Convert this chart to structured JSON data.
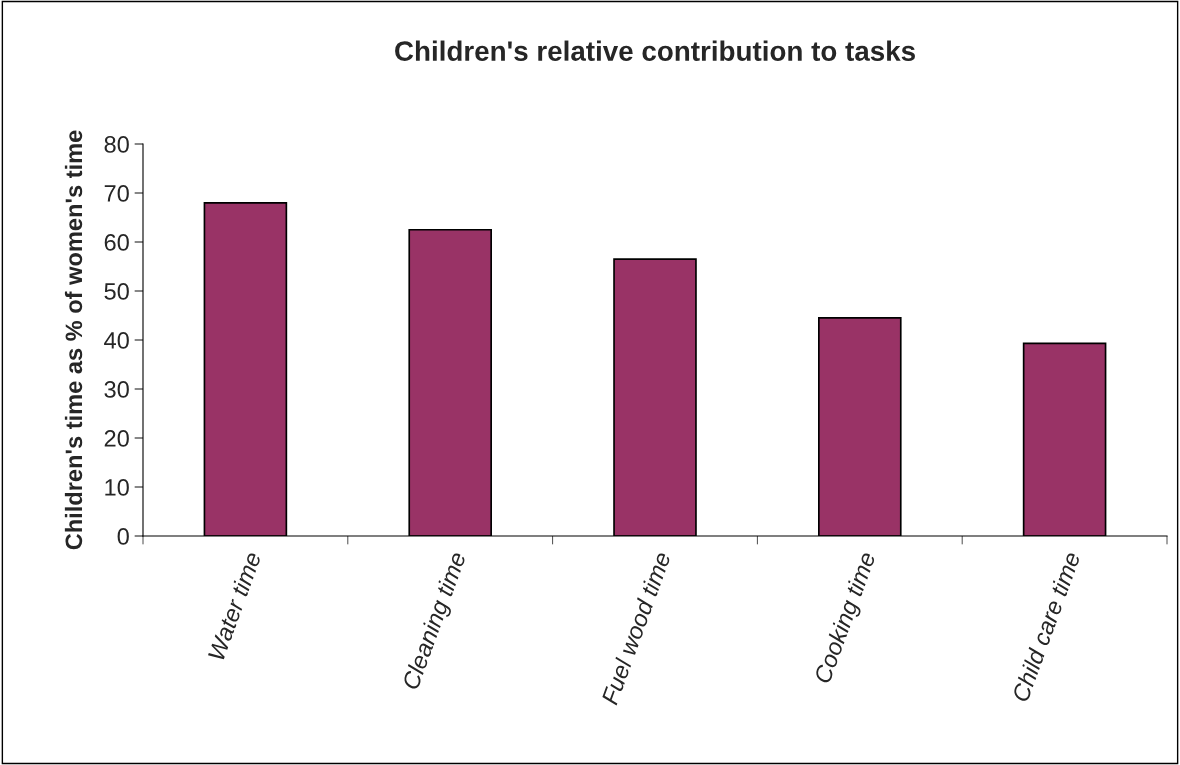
{
  "chart_data": {
    "type": "bar",
    "title": "Children's relative contribution to tasks",
    "ylabel": "Children's time as % of women's time",
    "categories": [
      "Water time",
      "Cleaning time",
      "Fuel wood time",
      "Cooking time",
      "Child care time"
    ],
    "values": [
      68,
      62.5,
      56.5,
      44.5,
      39.3
    ],
    "color": "#993366",
    "ylim": [
      0,
      80
    ],
    "yticks": [
      0,
      10,
      20,
      30,
      40,
      50,
      60,
      70,
      80
    ],
    "grid": false,
    "legend": false
  }
}
